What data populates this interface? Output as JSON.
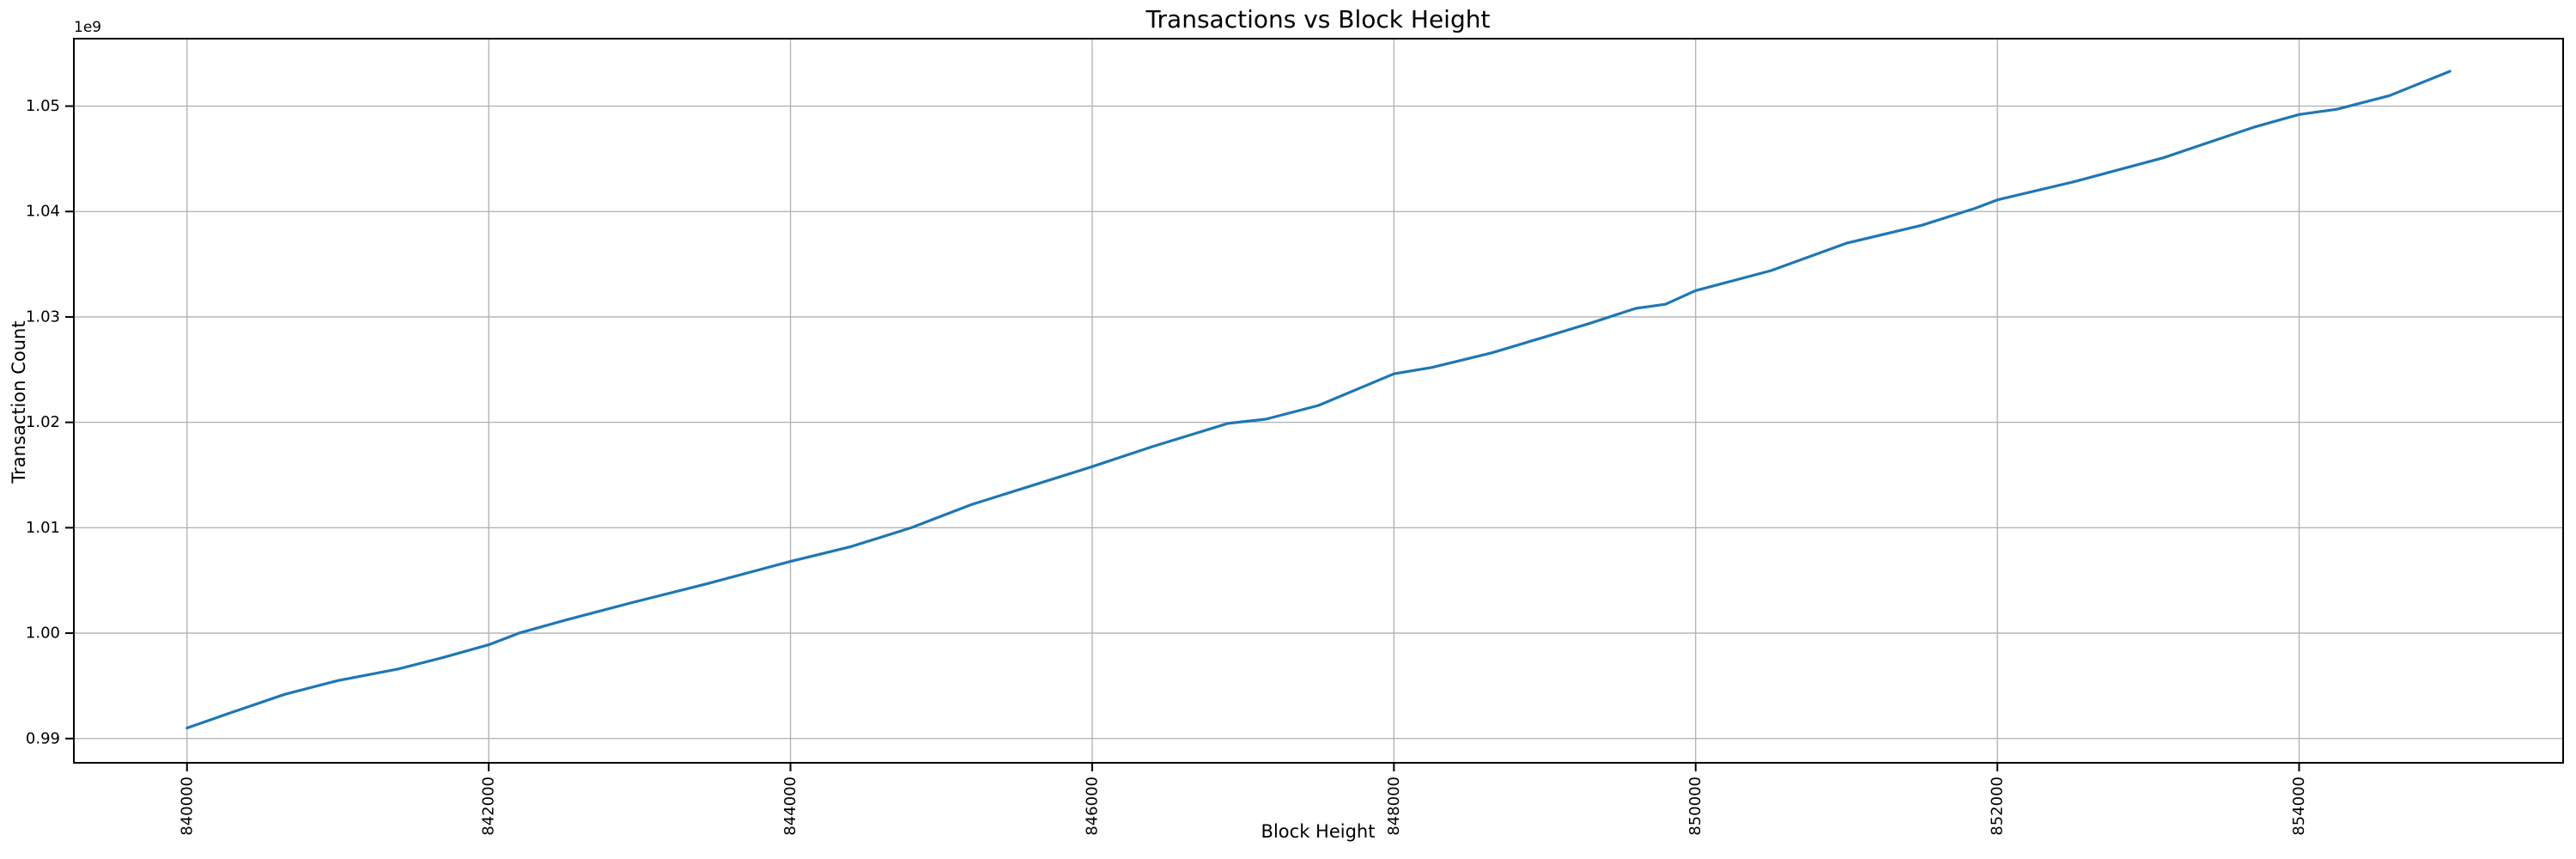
{
  "figure": {
    "title": "Transactions vs Block Height",
    "xlabel": "Block Height",
    "ylabel": "Transaction Count",
    "offset_label": "1e9"
  },
  "colors": {
    "line": "#1f77b4",
    "grid": "#b0b0b0",
    "spine": "#000000",
    "text": "#000000",
    "background": "#ffffff"
  },
  "chart_data": {
    "type": "line",
    "title": "Transactions vs Block Height",
    "xlabel": "Block Height",
    "ylabel": "Transaction Count",
    "y_offset_multiplier": "1e9",
    "grid": true,
    "legend": false,
    "xlim": [
      839250,
      855750
    ],
    "ylim": [
      987700000,
      1056400000
    ],
    "x_ticks": [
      840000,
      842000,
      844000,
      846000,
      848000,
      850000,
      852000,
      854000
    ],
    "x_tick_labels": [
      "840000",
      "842000",
      "844000",
      "846000",
      "848000",
      "850000",
      "852000",
      "854000"
    ],
    "x_tick_label_rotation": 90,
    "y_ticks": [
      990000000,
      1000000000,
      1010000000,
      1020000000,
      1030000000,
      1040000000,
      1050000000
    ],
    "y_tick_labels": [
      "0.99",
      "1.00",
      "1.01",
      "1.02",
      "1.03",
      "1.04",
      "1.05"
    ],
    "series": [
      {
        "name": "Transaction Count",
        "x": [
          840000,
          840300,
          840650,
          841000,
          841400,
          841700,
          842000,
          842200,
          842500,
          842950,
          843450,
          844000,
          844400,
          844800,
          845200,
          845600,
          846000,
          846400,
          846900,
          847150,
          847500,
          848000,
          848250,
          848650,
          849000,
          849300,
          849600,
          849800,
          850000,
          850500,
          851000,
          851500,
          851850,
          852000,
          852500,
          853100,
          853700,
          854000,
          854250,
          854600,
          855000
        ],
        "y": [
          991000000,
          992500000,
          994200000,
          995500000,
          996600000,
          997700000,
          998900000,
          1000000000,
          1001200000,
          1002900000,
          1004700000,
          1006800000,
          1008200000,
          1010000000,
          1012200000,
          1014000000,
          1015800000,
          1017700000,
          1019900000,
          1020300000,
          1021600000,
          1024600000,
          1025200000,
          1026600000,
          1028100000,
          1029400000,
          1030800000,
          1031200000,
          1032500000,
          1034400000,
          1037000000,
          1038700000,
          1040300000,
          1041100000,
          1042800000,
          1045100000,
          1048000000,
          1049200000,
          1049700000,
          1051000000,
          1053300000
        ]
      }
    ]
  }
}
